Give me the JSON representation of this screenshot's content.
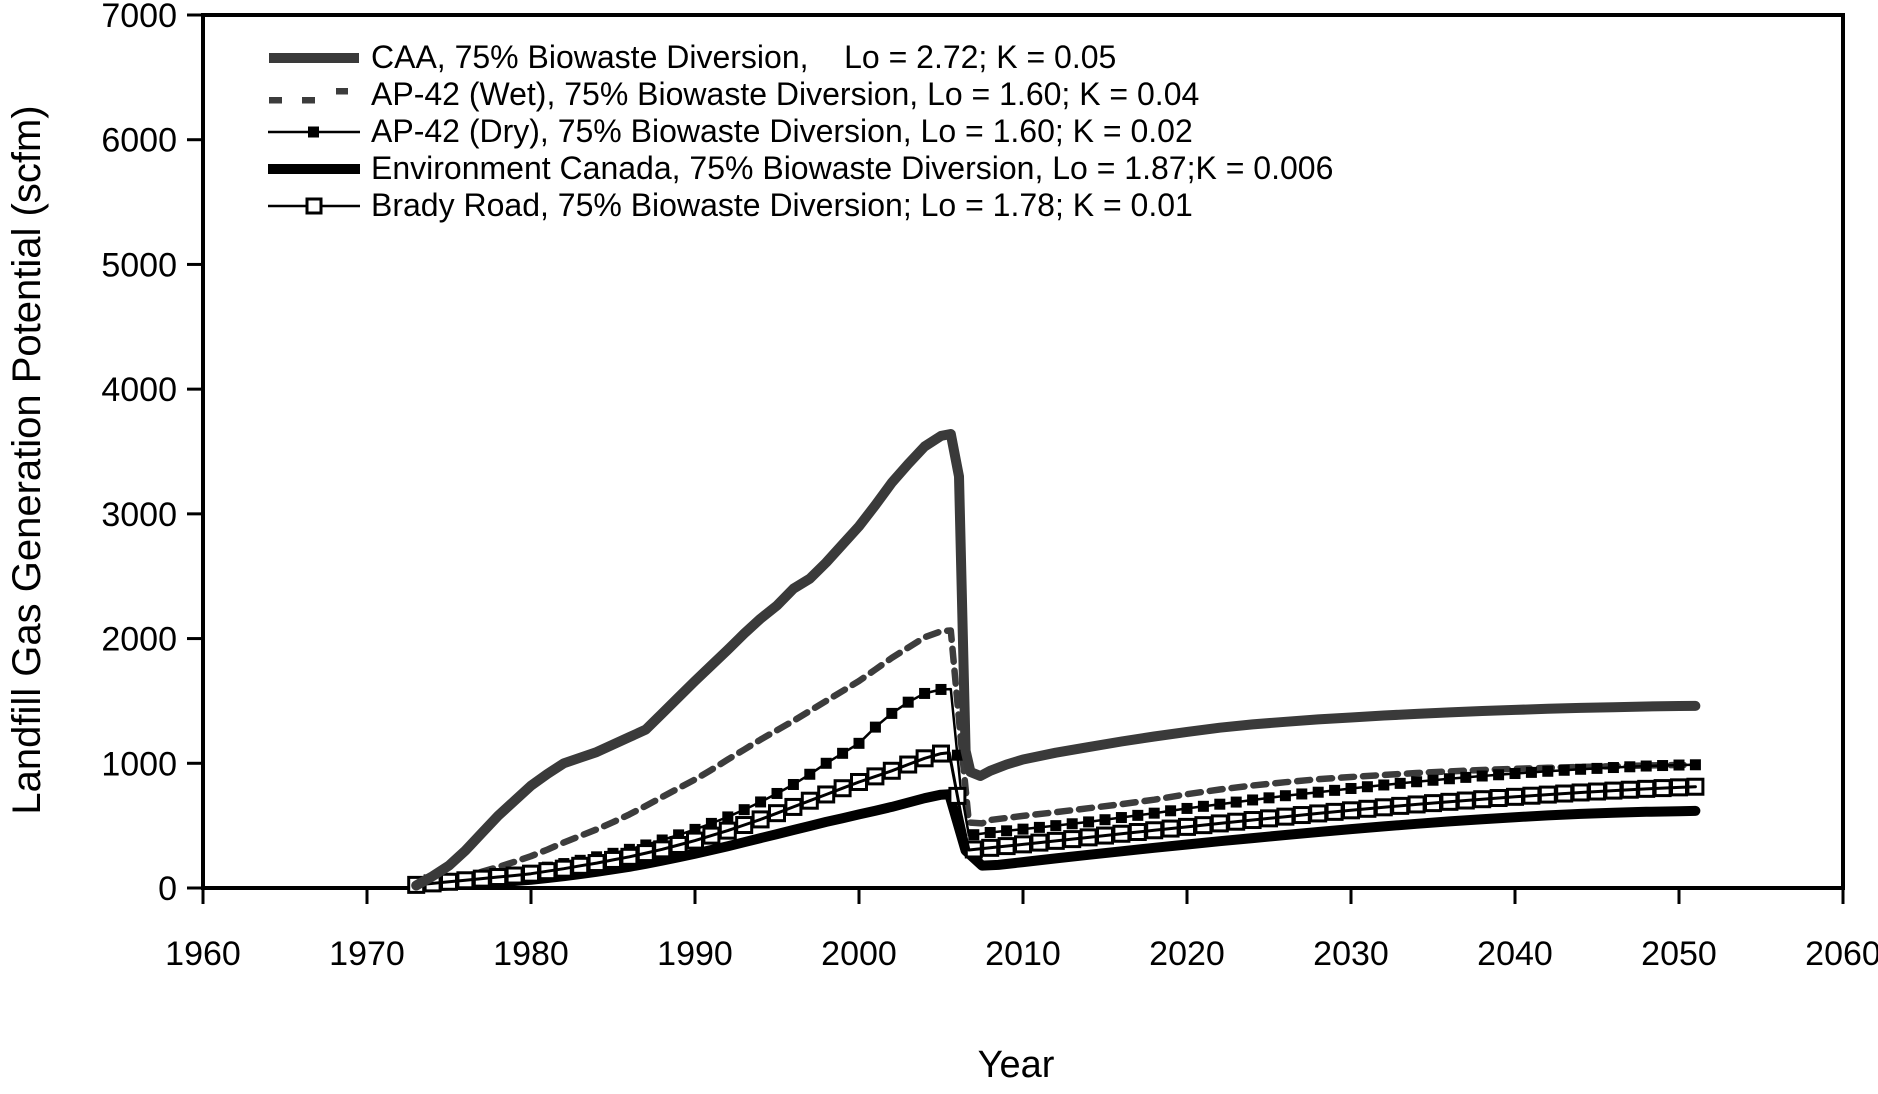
{
  "chart_data": {
    "type": "line",
    "title": "",
    "xlabel": "Year",
    "ylabel": "Landfill Gas Generation Potential (scfm)",
    "xlim": [
      1960,
      2060
    ],
    "ylim": [
      0,
      7000
    ],
    "x_ticks": [
      1960,
      1970,
      1980,
      1990,
      2000,
      2010,
      2020,
      2030,
      2040,
      2050,
      2060
    ],
    "y_ticks": [
      0,
      1000,
      2000,
      3000,
      4000,
      5000,
      6000,
      7000
    ],
    "grid": false,
    "frame": true,
    "legend_position": "top-left",
    "axis_color": "#000000",
    "background": "#ffffff",
    "series": [
      {
        "name": "CAA",
        "label": "CAA, 75% Biowaste Diversion,    Lo = 2.72; K = 0.05",
        "color": "#3a3a3a",
        "width": 10,
        "style": "solid",
        "marker": "none",
        "points": [
          [
            1973,
            20
          ],
          [
            1974,
            95
          ],
          [
            1975,
            180
          ],
          [
            1976,
            300
          ],
          [
            1977,
            440
          ],
          [
            1978,
            580
          ],
          [
            1979,
            700
          ],
          [
            1980,
            820
          ],
          [
            1981,
            915
          ],
          [
            1982,
            1000
          ],
          [
            1983,
            1045
          ],
          [
            1984,
            1090
          ],
          [
            1985,
            1150
          ],
          [
            1986,
            1210
          ],
          [
            1987,
            1270
          ],
          [
            1988,
            1400
          ],
          [
            1989,
            1530
          ],
          [
            1990,
            1660
          ],
          [
            1991,
            1785
          ],
          [
            1992,
            1910
          ],
          [
            1993,
            2040
          ],
          [
            1994,
            2160
          ],
          [
            1995,
            2265
          ],
          [
            1996,
            2400
          ],
          [
            1997,
            2480
          ],
          [
            1998,
            2610
          ],
          [
            1999,
            2755
          ],
          [
            2000,
            2900
          ],
          [
            2001,
            3070
          ],
          [
            2002,
            3250
          ],
          [
            2003,
            3400
          ],
          [
            2004,
            3540
          ],
          [
            2005,
            3625
          ],
          [
            2005.6,
            3640
          ],
          [
            2006.1,
            3300
          ],
          [
            2006.5,
            1100
          ],
          [
            2006.8,
            930
          ],
          [
            2007.4,
            898
          ],
          [
            2008,
            940
          ],
          [
            2009,
            990
          ],
          [
            2010,
            1030
          ],
          [
            2012,
            1085
          ],
          [
            2014,
            1130
          ],
          [
            2016,
            1175
          ],
          [
            2018,
            1215
          ],
          [
            2020,
            1252
          ],
          [
            2022,
            1285
          ],
          [
            2024,
            1312
          ],
          [
            2026,
            1333
          ],
          [
            2028,
            1352
          ],
          [
            2030,
            1367
          ],
          [
            2032,
            1383
          ],
          [
            2034,
            1396
          ],
          [
            2036,
            1408
          ],
          [
            2038,
            1419
          ],
          [
            2040,
            1428
          ],
          [
            2042,
            1437
          ],
          [
            2044,
            1444
          ],
          [
            2046,
            1450
          ],
          [
            2048,
            1455
          ],
          [
            2050,
            1459
          ],
          [
            2051,
            1460
          ]
        ]
      },
      {
        "name": "AP-42 (Wet)",
        "label": "AP-42 (Wet), 75% Biowaste Diversion, Lo = 1.60; K = 0.04",
        "color": "#3c3c3c",
        "width": 6.5,
        "style": "dashed",
        "marker": "none",
        "points": [
          [
            1973,
            10
          ],
          [
            1974,
            35
          ],
          [
            1975,
            62
          ],
          [
            1976,
            95
          ],
          [
            1977,
            130
          ],
          [
            1978,
            168
          ],
          [
            1979,
            210
          ],
          [
            1980,
            255
          ],
          [
            1981,
            308
          ],
          [
            1982,
            365
          ],
          [
            1983,
            418
          ],
          [
            1984,
            470
          ],
          [
            1985,
            528
          ],
          [
            1986,
            590
          ],
          [
            1987,
            658
          ],
          [
            1988,
            730
          ],
          [
            1989,
            800
          ],
          [
            1990,
            870
          ],
          [
            1991,
            948
          ],
          [
            1992,
            1030
          ],
          [
            1993,
            1110
          ],
          [
            1994,
            1190
          ],
          [
            1995,
            1265
          ],
          [
            1996,
            1340
          ],
          [
            1997,
            1420
          ],
          [
            1998,
            1500
          ],
          [
            1999,
            1580
          ],
          [
            2000,
            1660
          ],
          [
            2001,
            1752
          ],
          [
            2002,
            1845
          ],
          [
            2003,
            1928
          ],
          [
            2004,
            2010
          ],
          [
            2005,
            2058
          ],
          [
            2005.6,
            2065
          ],
          [
            2006.2,
            1200
          ],
          [
            2006.7,
            525
          ],
          [
            2007.5,
            518
          ],
          [
            2008,
            545
          ],
          [
            2010,
            578
          ],
          [
            2012,
            608
          ],
          [
            2014,
            640
          ],
          [
            2016,
            672
          ],
          [
            2018,
            708
          ],
          [
            2020,
            752
          ],
          [
            2022,
            790
          ],
          [
            2024,
            822
          ],
          [
            2026,
            848
          ],
          [
            2028,
            872
          ],
          [
            2030,
            890
          ],
          [
            2032,
            906
          ],
          [
            2034,
            922
          ],
          [
            2036,
            935
          ],
          [
            2038,
            946
          ],
          [
            2040,
            956
          ],
          [
            2042,
            964
          ],
          [
            2044,
            971
          ],
          [
            2046,
            977
          ],
          [
            2048,
            982
          ],
          [
            2050,
            986
          ],
          [
            2051,
            988
          ]
        ]
      },
      {
        "name": "AP-42 (Dry)",
        "label": "AP-42 (Dry), 75% Biowaste Diversion, Lo = 1.60; K = 0.02",
        "color": "#000000",
        "width": 2.5,
        "style": "solid",
        "marker": "filled-square",
        "marker_size": 11,
        "points": [
          [
            1973,
            5
          ],
          [
            1974,
            18
          ],
          [
            1975,
            32
          ],
          [
            1976,
            50
          ],
          [
            1977,
            70
          ],
          [
            1978,
            92
          ],
          [
            1979,
            115
          ],
          [
            1980,
            140
          ],
          [
            1981,
            167
          ],
          [
            1982,
            196
          ],
          [
            1983,
            222
          ],
          [
            1984,
            250
          ],
          [
            1985,
            278
          ],
          [
            1986,
            310
          ],
          [
            1987,
            345
          ],
          [
            1988,
            385
          ],
          [
            1989,
            426
          ],
          [
            1990,
            470
          ],
          [
            1991,
            518
          ],
          [
            1992,
            570
          ],
          [
            1993,
            628
          ],
          [
            1994,
            690
          ],
          [
            1995,
            758
          ],
          [
            1996,
            830
          ],
          [
            1997,
            912
          ],
          [
            1998,
            1000
          ],
          [
            1999,
            1080
          ],
          [
            2000,
            1160
          ],
          [
            2001,
            1290
          ],
          [
            2002,
            1400
          ],
          [
            2003,
            1490
          ],
          [
            2004,
            1560
          ],
          [
            2005,
            1592
          ],
          [
            2005.6,
            1595
          ],
          [
            2006.2,
            800
          ],
          [
            2006.7,
            422
          ],
          [
            2008,
            445
          ],
          [
            2010,
            472
          ],
          [
            2012,
            500
          ],
          [
            2014,
            530
          ],
          [
            2016,
            565
          ],
          [
            2018,
            600
          ],
          [
            2020,
            638
          ],
          [
            2022,
            672
          ],
          [
            2024,
            706
          ],
          [
            2026,
            740
          ],
          [
            2028,
            768
          ],
          [
            2030,
            798
          ],
          [
            2032,
            826
          ],
          [
            2034,
            852
          ],
          [
            2036,
            876
          ],
          [
            2038,
            898
          ],
          [
            2040,
            918
          ],
          [
            2042,
            936
          ],
          [
            2044,
            952
          ],
          [
            2046,
            966
          ],
          [
            2048,
            978
          ],
          [
            2050,
            986
          ],
          [
            2051,
            988
          ]
        ]
      },
      {
        "name": "Environment Canada",
        "label": "Environment Canada, 75% Biowaste Diversion, Lo = 1.87;K = 0.006",
        "color": "#000000",
        "width": 10,
        "style": "solid",
        "marker": "none",
        "points": [
          [
            1973,
            5
          ],
          [
            1974,
            12
          ],
          [
            1975,
            20
          ],
          [
            1976,
            29
          ],
          [
            1977,
            38
          ],
          [
            1978,
            47
          ],
          [
            1979,
            56
          ],
          [
            1980,
            66
          ],
          [
            1981,
            80
          ],
          [
            1982,
            95
          ],
          [
            1983,
            112
          ],
          [
            1984,
            130
          ],
          [
            1985,
            150
          ],
          [
            1986,
            170
          ],
          [
            1987,
            194
          ],
          [
            1988,
            220
          ],
          [
            1989,
            247
          ],
          [
            1990,
            275
          ],
          [
            1991,
            305
          ],
          [
            1992,
            335
          ],
          [
            1993,
            367
          ],
          [
            1994,
            400
          ],
          [
            1995,
            432
          ],
          [
            1996,
            465
          ],
          [
            1997,
            497
          ],
          [
            1998,
            530
          ],
          [
            1999,
            560
          ],
          [
            2000,
            590
          ],
          [
            2001,
            620
          ],
          [
            2002,
            650
          ],
          [
            2003,
            685
          ],
          [
            2004,
            720
          ],
          [
            2005,
            748
          ],
          [
            2005.5,
            752
          ],
          [
            2006.5,
            300
          ],
          [
            2007.5,
            180
          ],
          [
            2008.5,
            185
          ],
          [
            2010,
            208
          ],
          [
            2012,
            237
          ],
          [
            2014,
            266
          ],
          [
            2016,
            294
          ],
          [
            2018,
            322
          ],
          [
            2020,
            349
          ],
          [
            2022,
            375
          ],
          [
            2024,
            400
          ],
          [
            2026,
            425
          ],
          [
            2028,
            449
          ],
          [
            2030,
            472
          ],
          [
            2032,
            494
          ],
          [
            2034,
            515
          ],
          [
            2036,
            534
          ],
          [
            2038,
            552
          ],
          [
            2040,
            568
          ],
          [
            2042,
            582
          ],
          [
            2044,
            594
          ],
          [
            2046,
            604
          ],
          [
            2048,
            611
          ],
          [
            2050,
            616
          ],
          [
            2051,
            618
          ]
        ]
      },
      {
        "name": "Brady Road",
        "label": "Brady Road, 75% Biowaste Diversion; Lo = 1.78; K = 0.01",
        "color": "#000000",
        "width": 3,
        "style": "solid",
        "marker": "open-square",
        "marker_size": 15,
        "points": [
          [
            1973,
            25
          ],
          [
            1974,
            37
          ],
          [
            1975,
            50
          ],
          [
            1976,
            62
          ],
          [
            1977,
            75
          ],
          [
            1978,
            88
          ],
          [
            1979,
            100
          ],
          [
            1980,
            115
          ],
          [
            1981,
            135
          ],
          [
            1982,
            155
          ],
          [
            1983,
            178
          ],
          [
            1984,
            200
          ],
          [
            1985,
            225
          ],
          [
            1986,
            250
          ],
          [
            1987,
            280
          ],
          [
            1988,
            310
          ],
          [
            1989,
            345
          ],
          [
            1990,
            380
          ],
          [
            1991,
            420
          ],
          [
            1992,
            460
          ],
          [
            1993,
            505
          ],
          [
            1994,
            550
          ],
          [
            1995,
            600
          ],
          [
            1996,
            650
          ],
          [
            1997,
            700
          ],
          [
            1998,
            750
          ],
          [
            1999,
            800
          ],
          [
            2000,
            850
          ],
          [
            2001,
            895
          ],
          [
            2002,
            940
          ],
          [
            2003,
            990
          ],
          [
            2004,
            1040
          ],
          [
            2005,
            1078
          ],
          [
            2005.5,
            1085
          ],
          [
            2006.2,
            600
          ],
          [
            2006.7,
            305
          ],
          [
            2008,
            322
          ],
          [
            2010,
            350
          ],
          [
            2012,
            378
          ],
          [
            2014,
            406
          ],
          [
            2016,
            435
          ],
          [
            2018,
            463
          ],
          [
            2020,
            490
          ],
          [
            2022,
            518
          ],
          [
            2024,
            545
          ],
          [
            2026,
            572
          ],
          [
            2028,
            598
          ],
          [
            2030,
            623
          ],
          [
            2032,
            647
          ],
          [
            2034,
            670
          ],
          [
            2036,
            691
          ],
          [
            2038,
            712
          ],
          [
            2040,
            731
          ],
          [
            2042,
            749
          ],
          [
            2044,
            766
          ],
          [
            2046,
            781
          ],
          [
            2048,
            795
          ],
          [
            2050,
            807
          ],
          [
            2051,
            812
          ]
        ]
      }
    ]
  }
}
